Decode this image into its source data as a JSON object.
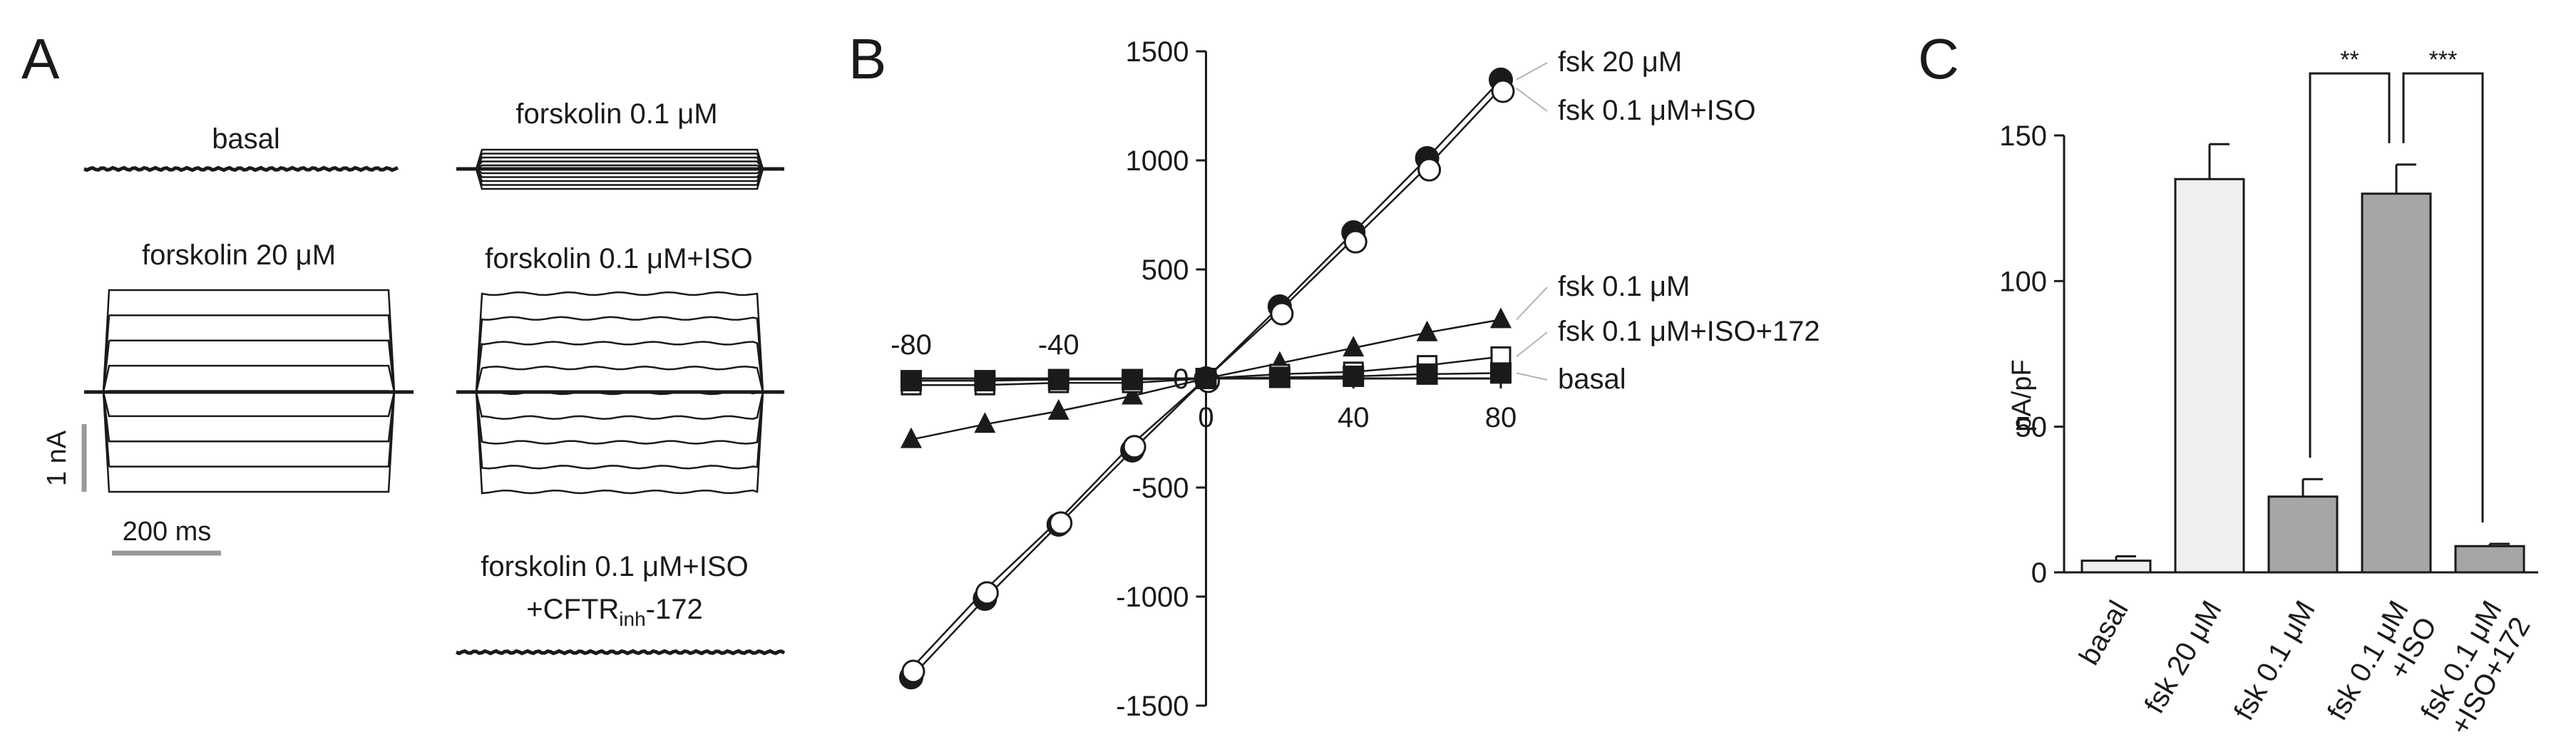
{
  "panels": {
    "A": {
      "letter": "A",
      "traces": [
        {
          "label": "basal",
          "kind": "flat"
        },
        {
          "label": "forskolin 0.1 μM",
          "kind": "small"
        },
        {
          "label": "forskolin 20 μM",
          "kind": "large"
        },
        {
          "label": "forskolin 0.1 μM+ISO",
          "kind": "large"
        },
        {
          "label": "forskolin 0.1 μM+ISO",
          "label2_main": "+CFTR",
          "label2_sub": "inh",
          "label2_tail": "-172",
          "kind": "flat"
        }
      ],
      "scale_current": "1 nA",
      "scale_time": "200 ms"
    },
    "B": {
      "letter": "B"
    },
    "C": {
      "letter": "C"
    }
  },
  "colors": {
    "ink": "#1a1a1a",
    "scale_bar": "#999999",
    "bar_light": "#efefef",
    "bar_dark": "#a6a6a6"
  },
  "chart_data": [
    {
      "panel": "B",
      "type": "line",
      "xlabel": "",
      "ylabel": "",
      "x": [
        -80,
        -60,
        -40,
        -20,
        0,
        20,
        40,
        60,
        80
      ],
      "xticks": [
        -80,
        -40,
        0,
        40,
        80
      ],
      "yticks": [
        -1500,
        -1000,
        -500,
        0,
        500,
        1000,
        1500
      ],
      "xlim": [
        -80,
        80
      ],
      "ylim": [
        -1500,
        1500
      ],
      "series": [
        {
          "name": "fsk 20 μM",
          "marker": "filled-circle",
          "values": [
            -1370,
            -1010,
            -670,
            -330,
            0,
            330,
            670,
            1010,
            1370
          ]
        },
        {
          "name": "fsk 0.1 μM+ISO",
          "marker": "open-circle",
          "values": [
            -1330,
            -970,
            -650,
            -300,
            0,
            310,
            640,
            970,
            1330
          ]
        },
        {
          "name": "fsk 0.1 μM",
          "marker": "filled-triangle",
          "values": [
            -280,
            -210,
            -150,
            -80,
            0,
            70,
            140,
            210,
            270
          ]
        },
        {
          "name": "fsk 0.1 μM+ISO+172",
          "marker": "open-square",
          "values": [
            -30,
            -30,
            -20,
            -20,
            0,
            20,
            30,
            60,
            100
          ]
        },
        {
          "name": "basal",
          "marker": "filled-square",
          "values": [
            -10,
            -10,
            -5,
            -5,
            0,
            5,
            10,
            20,
            25
          ]
        }
      ]
    },
    {
      "panel": "C",
      "type": "bar",
      "ylabel": "pA/pF",
      "ylim": [
        0,
        150
      ],
      "yticks": [
        0,
        50,
        100,
        150
      ],
      "categories": [
        {
          "line1": "basal",
          "line2": ""
        },
        {
          "line1": "fsk 20 μM",
          "line2": ""
        },
        {
          "line1": "fsk 0.1 μM",
          "line2": ""
        },
        {
          "line1": "fsk 0.1 μM",
          "line2": "+ISO"
        },
        {
          "line1": "fsk 0.1 μM",
          "line2": "+ISO+172"
        }
      ],
      "values": [
        4,
        135,
        26,
        130,
        9
      ],
      "errors": [
        1.5,
        12,
        6,
        10,
        0.8
      ],
      "fills": [
        "light",
        "light",
        "dark",
        "dark",
        "dark"
      ],
      "significance": [
        {
          "from": 2,
          "to": 3,
          "label": "**"
        },
        {
          "from": 3,
          "to": 4,
          "label": "***"
        }
      ]
    }
  ]
}
